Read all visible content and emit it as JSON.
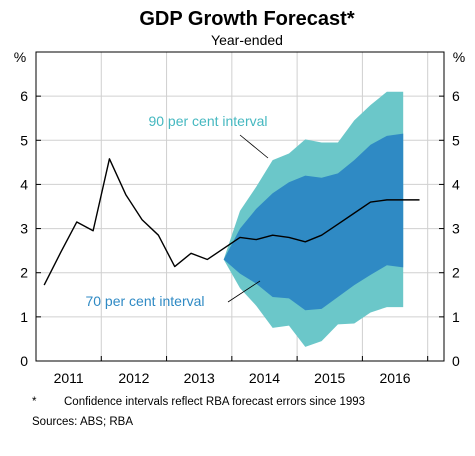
{
  "chart_data": {
    "type": "area",
    "title": "GDP Growth Forecast*",
    "subtitle": "Year-ended",
    "y_unit_left": "%",
    "y_unit_right": "%",
    "ylim": [
      0,
      7
    ],
    "yticks": [
      0,
      1,
      2,
      3,
      4,
      5,
      6
    ],
    "xlim": [
      2010.5,
      2016.75
    ],
    "x_tick_labels": [
      {
        "label": "2011",
        "x": 2011.0
      },
      {
        "label": "2012",
        "x": 2012.0
      },
      {
        "label": "2013",
        "x": 2013.0
      },
      {
        "label": "2014",
        "x": 2014.0
      },
      {
        "label": "2015",
        "x": 2015.0
      },
      {
        "label": "2016",
        "x": 2016.0
      }
    ],
    "x_gridlines": [
      2011.5,
      2012.5,
      2013.5,
      2014.5,
      2015.5,
      2016.5
    ],
    "grid": {
      "horizontal": true,
      "vertical": true
    },
    "colors": {
      "band90": "#6bc7c9",
      "band70": "#2f8ac4",
      "line": "#000000",
      "grid": "#d0d0d0"
    },
    "series": [
      {
        "kind": "line",
        "x": [
          2010.625,
          2010.875,
          2011.125,
          2011.375,
          2011.625,
          2011.875,
          2012.125,
          2012.375,
          2012.625,
          2012.875,
          2013.125,
          2013.375,
          2013.625,
          2013.875,
          2014.125,
          2014.375,
          2014.625,
          2014.875,
          2015.125,
          2015.375,
          2015.625,
          2015.875,
          2016.125,
          2016.375
        ],
        "y": [
          1.72,
          2.45,
          3.15,
          2.95,
          4.58,
          3.77,
          3.2,
          2.85,
          2.14,
          2.44,
          2.3,
          2.55,
          2.8,
          2.75,
          2.85,
          2.8,
          2.7,
          2.85,
          3.1,
          3.35,
          3.6,
          3.65,
          3.65,
          3.65
        ]
      },
      {
        "kind": "band",
        "name": "90 per cent interval",
        "x": [
          2013.375,
          2013.625,
          2013.875,
          2014.125,
          2014.375,
          2014.625,
          2014.875,
          2015.125,
          2015.375,
          2015.625,
          2015.875,
          2016.125
        ],
        "upper": [
          2.3,
          3.4,
          3.95,
          4.55,
          4.7,
          5.02,
          4.95,
          4.95,
          5.45,
          5.8,
          6.1,
          6.1
        ],
        "lower": [
          2.3,
          1.65,
          1.25,
          0.75,
          0.8,
          0.32,
          0.45,
          0.83,
          0.85,
          1.1,
          1.22,
          1.22
        ]
      },
      {
        "kind": "band",
        "name": "70 per cent interval",
        "x": [
          2013.375,
          2013.625,
          2013.875,
          2014.125,
          2014.375,
          2014.625,
          2014.875,
          2015.125,
          2015.375,
          2015.625,
          2015.875,
          2016.125
        ],
        "upper": [
          2.3,
          3.0,
          3.45,
          3.8,
          4.05,
          4.2,
          4.15,
          4.25,
          4.55,
          4.9,
          5.1,
          5.15
        ],
        "lower": [
          2.3,
          1.98,
          1.75,
          1.45,
          1.42,
          1.15,
          1.18,
          1.45,
          1.72,
          1.95,
          2.17,
          2.12
        ]
      }
    ],
    "annotations": [
      {
        "text": "90 per cent interval",
        "color": "#45b8c0"
      },
      {
        "text": "70 per cent interval",
        "color": "#2f8ac4"
      }
    ]
  },
  "footnote": {
    "marker": "*",
    "text": "Confidence intervals reflect RBA forecast errors since 1993",
    "sources": "Sources:   ABS; RBA"
  }
}
